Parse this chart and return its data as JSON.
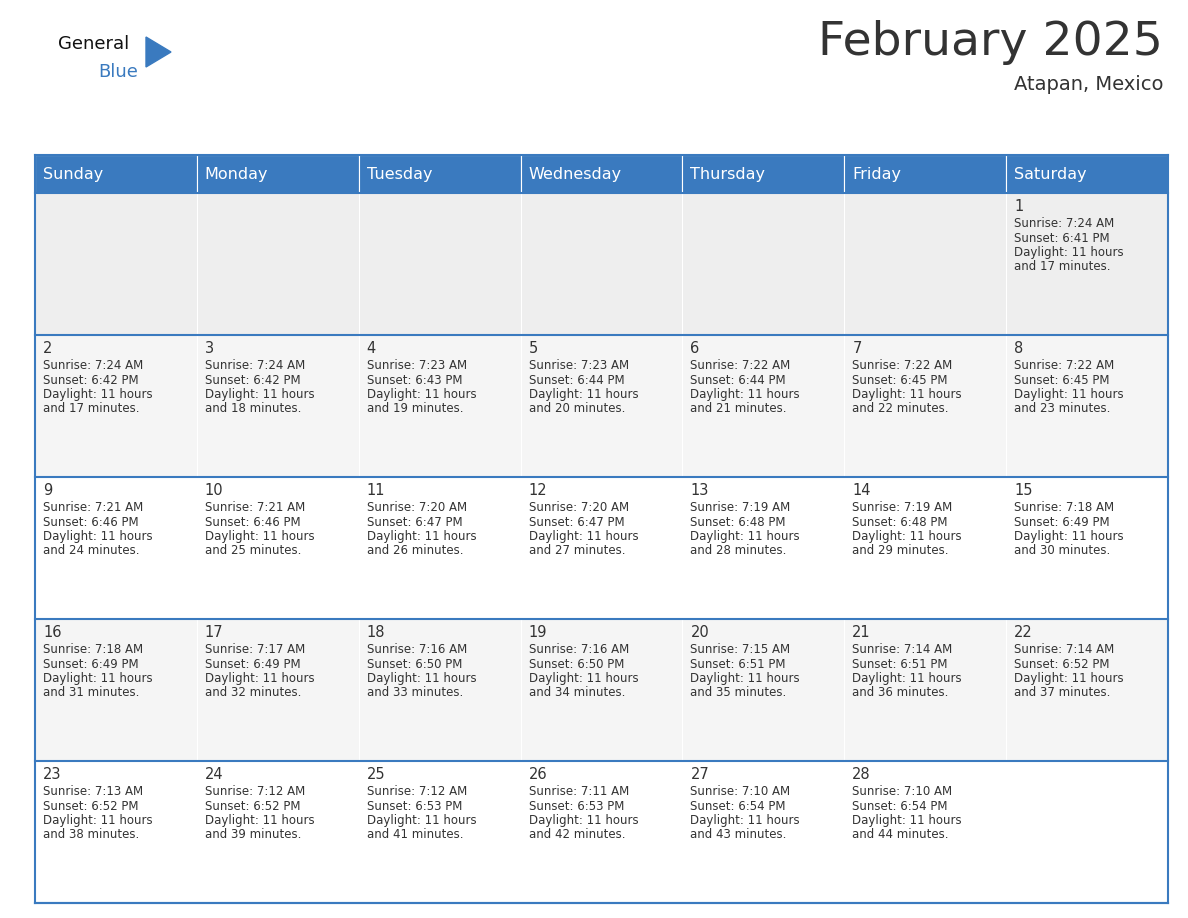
{
  "title": "February 2025",
  "subtitle": "Atapan, Mexico",
  "header_color": "#3a7abf",
  "header_text_color": "#ffffff",
  "cell_bg_row0": "#eeeeee",
  "cell_bg_default": "#f5f5f5",
  "cell_bg_white": "#ffffff",
  "grid_line_color": "#3a7abf",
  "days_of_week": [
    "Sunday",
    "Monday",
    "Tuesday",
    "Wednesday",
    "Thursday",
    "Friday",
    "Saturday"
  ],
  "calendar_data": [
    [
      null,
      null,
      null,
      null,
      null,
      null,
      {
        "day": 1,
        "sunrise": "7:24 AM",
        "sunset": "6:41 PM",
        "daylight": "11 hours",
        "daylight2": "and 17 minutes."
      }
    ],
    [
      {
        "day": 2,
        "sunrise": "7:24 AM",
        "sunset": "6:42 PM",
        "daylight": "11 hours",
        "daylight2": "and 17 minutes."
      },
      {
        "day": 3,
        "sunrise": "7:24 AM",
        "sunset": "6:42 PM",
        "daylight": "11 hours",
        "daylight2": "and 18 minutes."
      },
      {
        "day": 4,
        "sunrise": "7:23 AM",
        "sunset": "6:43 PM",
        "daylight": "11 hours",
        "daylight2": "and 19 minutes."
      },
      {
        "day": 5,
        "sunrise": "7:23 AM",
        "sunset": "6:44 PM",
        "daylight": "11 hours",
        "daylight2": "and 20 minutes."
      },
      {
        "day": 6,
        "sunrise": "7:22 AM",
        "sunset": "6:44 PM",
        "daylight": "11 hours",
        "daylight2": "and 21 minutes."
      },
      {
        "day": 7,
        "sunrise": "7:22 AM",
        "sunset": "6:45 PM",
        "daylight": "11 hours",
        "daylight2": "and 22 minutes."
      },
      {
        "day": 8,
        "sunrise": "7:22 AM",
        "sunset": "6:45 PM",
        "daylight": "11 hours",
        "daylight2": "and 23 minutes."
      }
    ],
    [
      {
        "day": 9,
        "sunrise": "7:21 AM",
        "sunset": "6:46 PM",
        "daylight": "11 hours",
        "daylight2": "and 24 minutes."
      },
      {
        "day": 10,
        "sunrise": "7:21 AM",
        "sunset": "6:46 PM",
        "daylight": "11 hours",
        "daylight2": "and 25 minutes."
      },
      {
        "day": 11,
        "sunrise": "7:20 AM",
        "sunset": "6:47 PM",
        "daylight": "11 hours",
        "daylight2": "and 26 minutes."
      },
      {
        "day": 12,
        "sunrise": "7:20 AM",
        "sunset": "6:47 PM",
        "daylight": "11 hours",
        "daylight2": "and 27 minutes."
      },
      {
        "day": 13,
        "sunrise": "7:19 AM",
        "sunset": "6:48 PM",
        "daylight": "11 hours",
        "daylight2": "and 28 minutes."
      },
      {
        "day": 14,
        "sunrise": "7:19 AM",
        "sunset": "6:48 PM",
        "daylight": "11 hours",
        "daylight2": "and 29 minutes."
      },
      {
        "day": 15,
        "sunrise": "7:18 AM",
        "sunset": "6:49 PM",
        "daylight": "11 hours",
        "daylight2": "and 30 minutes."
      }
    ],
    [
      {
        "day": 16,
        "sunrise": "7:18 AM",
        "sunset": "6:49 PM",
        "daylight": "11 hours",
        "daylight2": "and 31 minutes."
      },
      {
        "day": 17,
        "sunrise": "7:17 AM",
        "sunset": "6:49 PM",
        "daylight": "11 hours",
        "daylight2": "and 32 minutes."
      },
      {
        "day": 18,
        "sunrise": "7:16 AM",
        "sunset": "6:50 PM",
        "daylight": "11 hours",
        "daylight2": "and 33 minutes."
      },
      {
        "day": 19,
        "sunrise": "7:16 AM",
        "sunset": "6:50 PM",
        "daylight": "11 hours",
        "daylight2": "and 34 minutes."
      },
      {
        "day": 20,
        "sunrise": "7:15 AM",
        "sunset": "6:51 PM",
        "daylight": "11 hours",
        "daylight2": "and 35 minutes."
      },
      {
        "day": 21,
        "sunrise": "7:14 AM",
        "sunset": "6:51 PM",
        "daylight": "11 hours",
        "daylight2": "and 36 minutes."
      },
      {
        "day": 22,
        "sunrise": "7:14 AM",
        "sunset": "6:52 PM",
        "daylight": "11 hours",
        "daylight2": "and 37 minutes."
      }
    ],
    [
      {
        "day": 23,
        "sunrise": "7:13 AM",
        "sunset": "6:52 PM",
        "daylight": "11 hours",
        "daylight2": "and 38 minutes."
      },
      {
        "day": 24,
        "sunrise": "7:12 AM",
        "sunset": "6:52 PM",
        "daylight": "11 hours",
        "daylight2": "and 39 minutes."
      },
      {
        "day": 25,
        "sunrise": "7:12 AM",
        "sunset": "6:53 PM",
        "daylight": "11 hours",
        "daylight2": "and 41 minutes."
      },
      {
        "day": 26,
        "sunrise": "7:11 AM",
        "sunset": "6:53 PM",
        "daylight": "11 hours",
        "daylight2": "and 42 minutes."
      },
      {
        "day": 27,
        "sunrise": "7:10 AM",
        "sunset": "6:54 PM",
        "daylight": "11 hours",
        "daylight2": "and 43 minutes."
      },
      {
        "day": 28,
        "sunrise": "7:10 AM",
        "sunset": "6:54 PM",
        "daylight": "11 hours",
        "daylight2": "and 44 minutes."
      },
      null
    ]
  ],
  "logo_triangle_color": "#3a7abf",
  "text_color_dark": "#333333",
  "text_color_blue": "#3a7abf",
  "small_font_size": 8.5,
  "day_number_font_size": 10.5,
  "title_fontsize": 34,
  "subtitle_fontsize": 14,
  "header_fontsize": 11.5
}
